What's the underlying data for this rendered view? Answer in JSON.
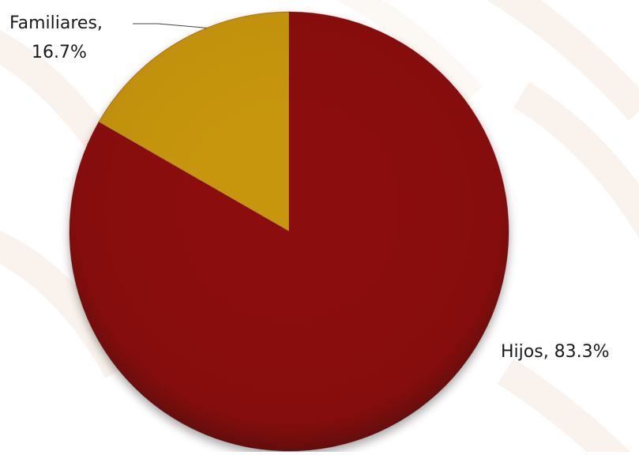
{
  "chart_data": {
    "type": "pie",
    "title": "",
    "slices": [
      {
        "label": "Hijos",
        "value": 83.3,
        "display": "83.3%",
        "color": "#8b0a0a"
      },
      {
        "label": "Familiares",
        "value": 16.7,
        "display": "16.7%",
        "color": "#c8960c"
      }
    ],
    "legend": "none",
    "background_pattern": "faint beige diagonal watermark stripes"
  }
}
